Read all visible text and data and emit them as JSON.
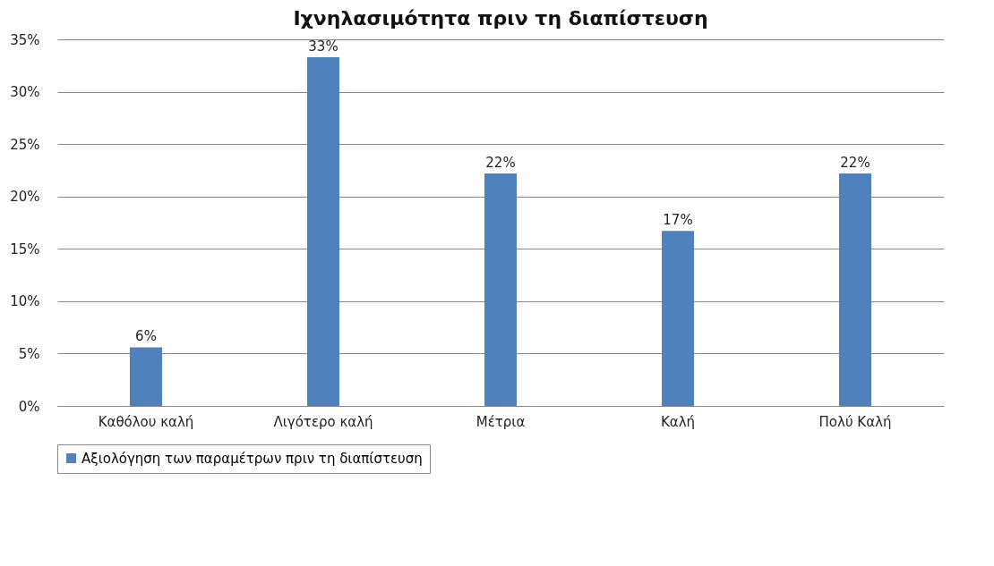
{
  "chart_data": {
    "type": "bar",
    "title": "Ιχνηλασιμότητα πριν τη διαπίστευση",
    "categories": [
      "Καθόλου καλή",
      "Λιγότερο καλή",
      "Μέτρια",
      "Καλή",
      "Πολύ Καλή"
    ],
    "series": [
      {
        "name": "Αξιολόγηση των παραμέτρων πριν τη διαπίστευση",
        "color": "#4f81bd",
        "values": [
          5.6,
          33.3,
          22.2,
          16.7,
          22.2
        ],
        "value_labels": [
          "6%",
          "33%",
          "22%",
          "17%",
          "22%"
        ]
      }
    ],
    "ylim": [
      0,
      35
    ],
    "yticks": [
      {
        "value": 0,
        "label": "0%"
      },
      {
        "value": 5,
        "label": "5%"
      },
      {
        "value": 10,
        "label": "10%"
      },
      {
        "value": 15,
        "label": "15%"
      },
      {
        "value": 20,
        "label": "20%"
      },
      {
        "value": 25,
        "label": "25%"
      },
      {
        "value": 30,
        "label": "30%"
      },
      {
        "value": 35,
        "label": "35%"
      }
    ],
    "grid": "y",
    "legend": "bottom"
  }
}
